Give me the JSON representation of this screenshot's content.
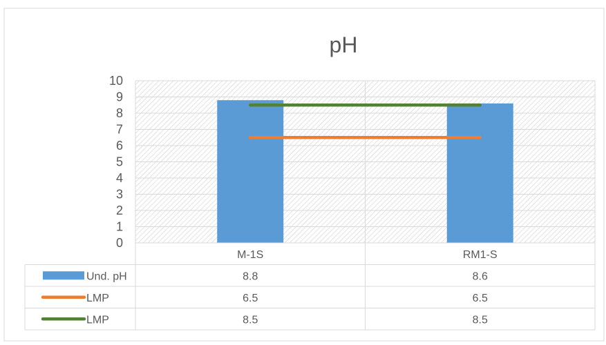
{
  "chart_data": {
    "type": "bar",
    "title": "pH",
    "categories": [
      "M-1S",
      "RM1-S"
    ],
    "ylim": [
      0,
      10
    ],
    "yticks": [
      0,
      1,
      2,
      3,
      4,
      5,
      6,
      7,
      8,
      9,
      10
    ],
    "grid": true,
    "series": [
      {
        "name": "Und. pH",
        "kind": "bar",
        "color": "#5b9bd5",
        "values": [
          8.8,
          8.6
        ]
      },
      {
        "name": "LMP",
        "kind": "line",
        "color": "#ed7d31",
        "values": [
          6.5,
          6.5
        ]
      },
      {
        "name": "LMP",
        "kind": "line",
        "color": "#548235",
        "values": [
          8.5,
          8.5
        ]
      }
    ],
    "data_table": true
  }
}
